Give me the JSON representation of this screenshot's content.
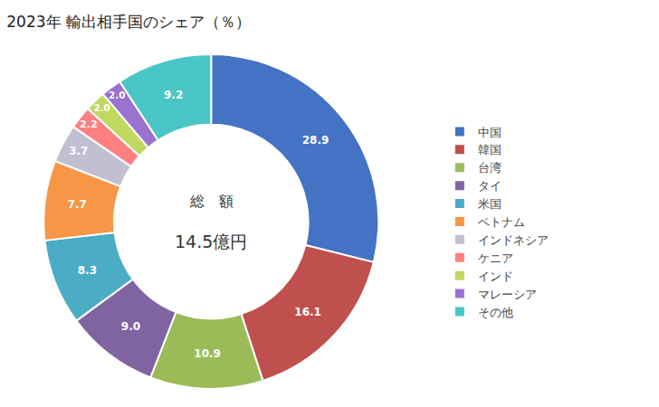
{
  "chart_data": {
    "type": "pie",
    "title": "2023年 輸出相手国のシェア（％）",
    "annotations": [
      "総　額",
      "14.5億円"
    ],
    "categories": [
      "中国",
      "韓国",
      "台湾",
      "タイ",
      "米国",
      "ベトナム",
      "インドネシア",
      "ケニア",
      "インド",
      "マレーシア",
      "その他"
    ],
    "values": [
      28.9,
      16.1,
      10.9,
      9.0,
      8.3,
      7.7,
      3.7,
      2.2,
      2.0,
      2.0,
      9.2
    ],
    "value_labels": [
      "28.9",
      "16.1",
      "10.9",
      "9.0",
      "8.3",
      "7.7",
      "3.7",
      "2.2",
      "2.0",
      "2.0",
      "9.2"
    ],
    "colors": [
      "#4472C4",
      "#C0504D",
      "#9BBB59",
      "#8064A2",
      "#4BACC6",
      "#F79646",
      "#C0C0D0",
      "#FF8080",
      "#C0D860",
      "#9B72CF",
      "#4AC6C6"
    ],
    "data_labels": true,
    "legend": "right"
  }
}
